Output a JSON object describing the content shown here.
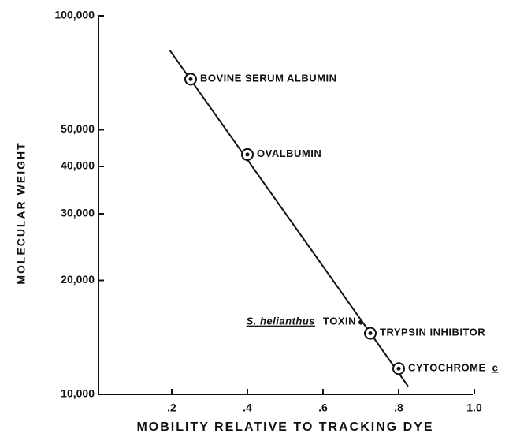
{
  "chart_data": {
    "type": "scatter",
    "y_label": "MOLECULAR WEIGHT",
    "x_label": "MOBILITY RELATIVE TO TRACKING DYE",
    "log_y": true,
    "color": "#111111",
    "xlim": [
      0,
      1.0
    ],
    "ylim": [
      10000,
      100000
    ],
    "xticks": [
      {
        "value": 0.2,
        "label": ".2"
      },
      {
        "value": 0.4,
        "label": ".4"
      },
      {
        "value": 0.6,
        "label": ".6"
      },
      {
        "value": 0.8,
        "label": ".8"
      },
      {
        "value": 1.0,
        "label": "1.0"
      }
    ],
    "yticks": [
      {
        "value": 10000,
        "label": "10,000"
      },
      {
        "value": 20000,
        "label": "20,000"
      },
      {
        "value": 30000,
        "label": "30,000"
      },
      {
        "value": 40000,
        "label": "40,000"
      },
      {
        "value": 50000,
        "label": "50,000"
      },
      {
        "value": 100000,
        "label": "100,000"
      }
    ],
    "points": [
      {
        "name": "BOVINE SERUM ALBUMIN",
        "x": 0.25,
        "value": 68000
      },
      {
        "name": "OVALBUMIN",
        "x": 0.4,
        "value": 43000
      },
      {
        "name": "TRYPSIN INHIBITOR",
        "x": 0.725,
        "value": 14500
      },
      {
        "name": "CYTOCHROME",
        "suffix": "c",
        "x": 0.8,
        "value": 11700
      }
    ],
    "toxin": {
      "species": "S. helianthus",
      "text": "TOXIN",
      "x": 0.7,
      "value": 15500
    },
    "fit_line": {
      "x": [
        0.195,
        0.825
      ],
      "values": [
        81000,
        10500
      ]
    }
  }
}
